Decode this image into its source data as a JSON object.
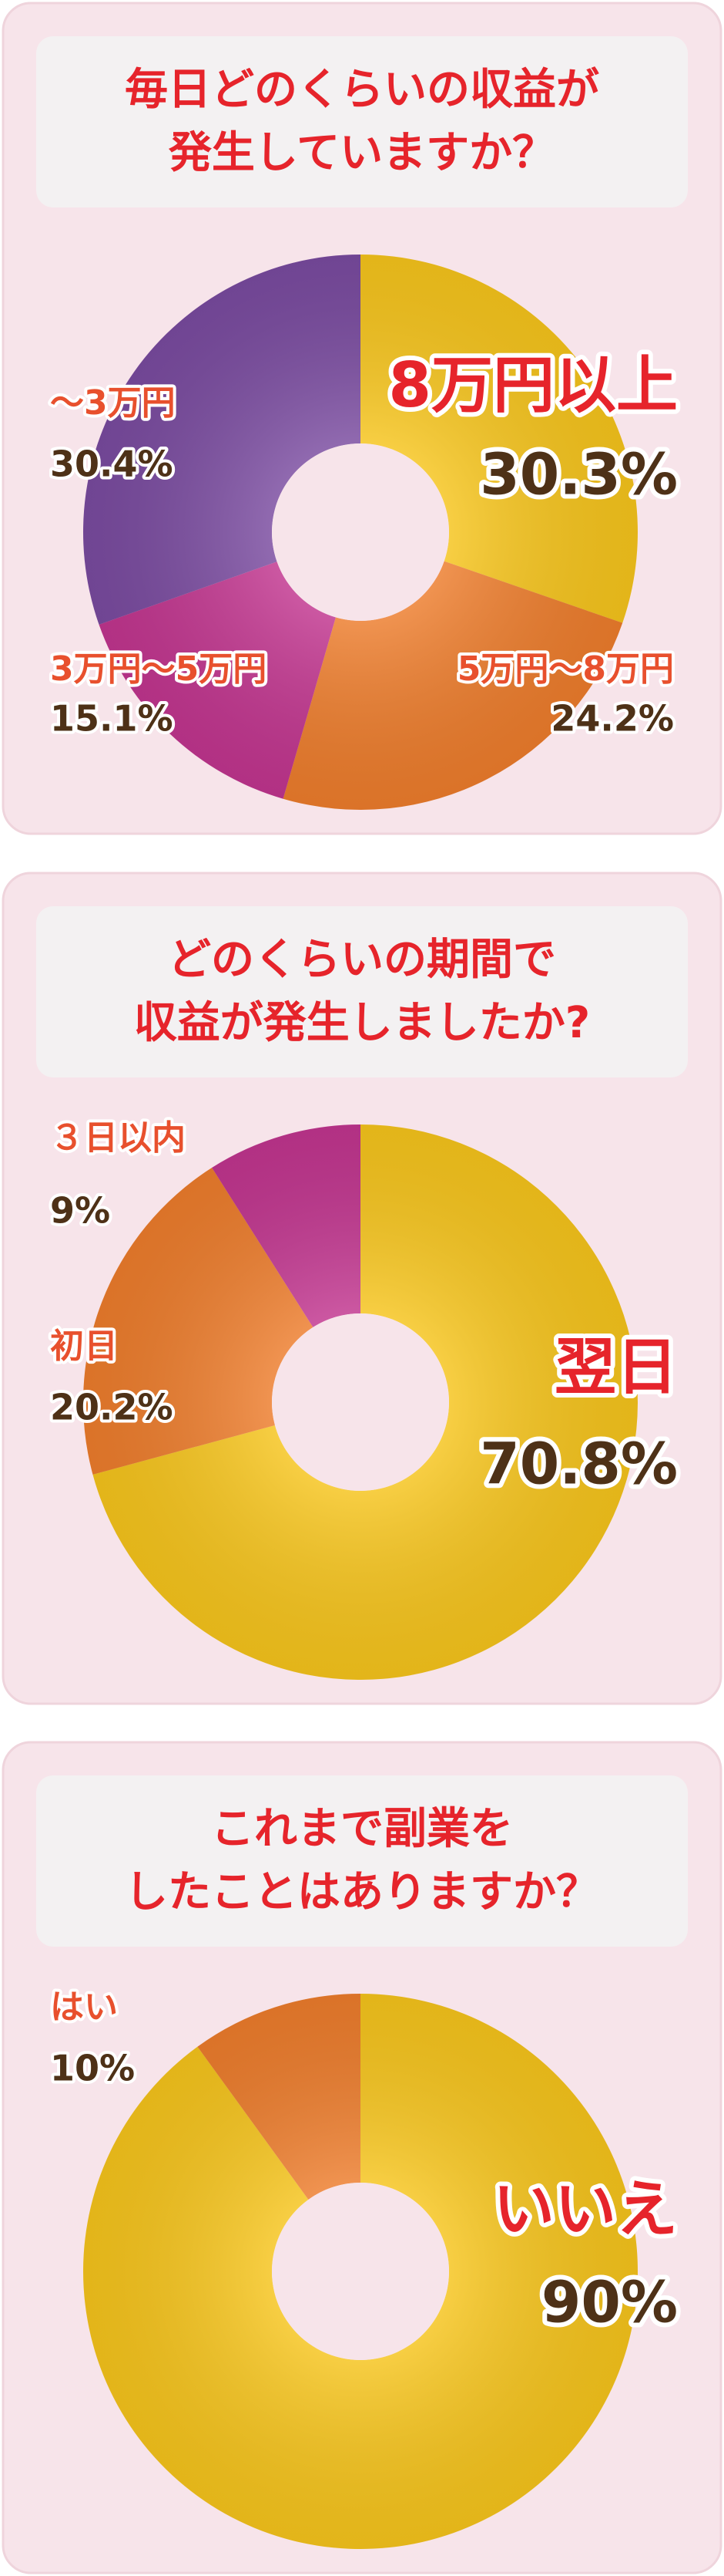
{
  "chart_data": [
    {
      "type": "pie",
      "title": [
        "毎日どのくらいの収益が",
        "発生していますか？"
      ],
      "categories": [
        "8万円以上",
        "5万円～8万円",
        "3万円～5万円",
        "～3万円"
      ],
      "values": [
        30.3,
        24.2,
        15.1,
        30.4
      ],
      "value_labels": [
        "30.3%",
        "24.2%",
        "15.1%",
        "30.4%"
      ],
      "colors": [
        "#f7c51c",
        "#ee7d2c",
        "#c2358f",
        "#7a4ba0"
      ]
    },
    {
      "type": "pie",
      "title": [
        "どのくらいの期間で",
        "収益が発生しましたか?"
      ],
      "categories": [
        "翌日",
        "初日",
        "３日以内"
      ],
      "values": [
        70.8,
        20.2,
        9
      ],
      "value_labels": [
        "70.8%",
        "20.2%",
        "9%"
      ],
      "colors": [
        "#f7c51c",
        "#ee7d2c",
        "#c2358f"
      ]
    },
    {
      "type": "pie",
      "title": [
        "これまで副業を",
        "したことはありますか？"
      ],
      "categories": [
        "いいえ",
        "はい"
      ],
      "values": [
        90,
        10
      ],
      "value_labels": [
        "90%",
        "10%"
      ],
      "colors": [
        "#f7c51c",
        "#ee7d2c"
      ]
    }
  ]
}
